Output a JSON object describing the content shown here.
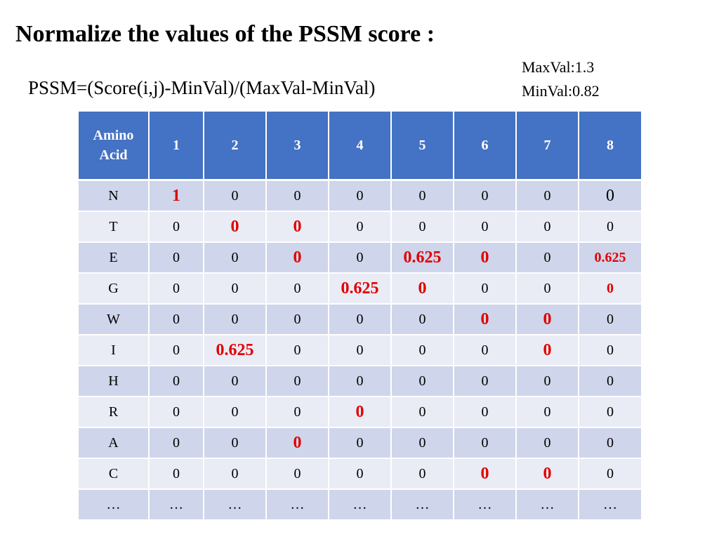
{
  "title": "Normalize the values of the PSSM score :",
  "formula": "PSSM=(Score(i,j)-MinVal)/(MaxVal-MinVal)",
  "maxval": "MaxVal:1.3",
  "minval": "MinVal:0.82",
  "colors": {
    "header_bg": "#4472c4",
    "row_dark": "#cfd5ea",
    "row_light": "#e9ebf5",
    "highlight": "#e00000"
  },
  "table": {
    "header": [
      "Amino\nAcid",
      "1",
      "2",
      "3",
      "4",
      "5",
      "6",
      "7",
      "8"
    ],
    "rows": [
      {
        "aa": "N",
        "cells": [
          "1",
          "0",
          "0",
          "0",
          "0",
          "0",
          "0",
          "0"
        ],
        "hl": [
          0
        ],
        "big": [
          7
        ]
      },
      {
        "aa": "T",
        "cells": [
          "0",
          "0",
          "0",
          "0",
          "0",
          "0",
          "0",
          "0"
        ],
        "hl": [
          1,
          2
        ]
      },
      {
        "aa": "E",
        "cells": [
          "0",
          "0",
          "0",
          "0",
          "0.625",
          "0",
          "0",
          "0.625"
        ],
        "hl": [
          2,
          4,
          5
        ],
        "hl_sm": [
          7
        ]
      },
      {
        "aa": "G",
        "cells": [
          "0",
          "0",
          "0",
          "0.625",
          "0",
          "0",
          "0",
          "0"
        ],
        "hl": [
          3,
          4
        ],
        "hl_sm": [
          7
        ]
      },
      {
        "aa": "W",
        "cells": [
          "0",
          "0",
          "0",
          "0",
          "0",
          "0",
          "0",
          "0"
        ],
        "hl": [
          5,
          6
        ]
      },
      {
        "aa": "I",
        "cells": [
          "0",
          "0.625",
          "0",
          "0",
          "0",
          "0",
          "0",
          "0"
        ],
        "hl": [
          1,
          6
        ]
      },
      {
        "aa": "H",
        "cells": [
          "0",
          "0",
          "0",
          "0",
          "0",
          "0",
          "0",
          "0"
        ]
      },
      {
        "aa": "R",
        "cells": [
          "0",
          "0",
          "0",
          "0",
          "0",
          "0",
          "0",
          "0"
        ],
        "hl": [
          3
        ]
      },
      {
        "aa": "A",
        "cells": [
          "0",
          "0",
          "0",
          "0",
          "0",
          "0",
          "0",
          "0"
        ],
        "hl": [
          2
        ]
      },
      {
        "aa": "C",
        "cells": [
          "0",
          "0",
          "0",
          "0",
          "0",
          "0",
          "0",
          "0"
        ],
        "hl": [
          5,
          6
        ]
      },
      {
        "aa": "…",
        "cells": [
          "…",
          "…",
          "…",
          "…",
          "…",
          "…",
          "…",
          "…"
        ]
      }
    ]
  }
}
